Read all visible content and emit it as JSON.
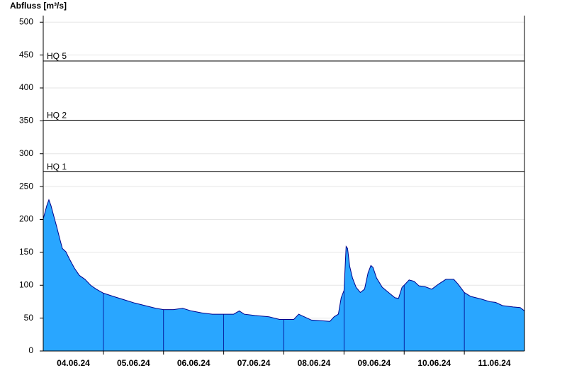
{
  "chart_data": {
    "type": "area",
    "title": "Abfluss [m³/s]",
    "x": [
      0,
      0.059,
      0.094,
      0.129,
      0.176,
      0.224,
      0.271,
      0.318,
      0.376,
      0.435,
      0.518,
      0.6,
      0.694,
      0.788,
      0.882,
      1,
      1.165,
      1.341,
      1.518,
      1.694,
      1.871,
      2,
      2.165,
      2.318,
      2.459,
      2.635,
      2.812,
      3,
      3.165,
      3.259,
      3.341,
      3.518,
      3.753,
      3.929,
      4,
      4.165,
      4.247,
      4.341,
      4.459,
      4.635,
      4.765,
      4.835,
      4.906,
      4.953,
      5,
      5.035,
      5.059,
      5.094,
      5.141,
      5.2,
      5.271,
      5.341,
      5.4,
      5.447,
      5.482,
      5.541,
      5.635,
      5.753,
      5.847,
      5.906,
      5.965,
      6,
      6.082,
      6.165,
      6.247,
      6.341,
      6.459,
      6.576,
      6.694,
      6.824,
      6.894,
      7,
      7.106,
      7.282,
      7.424,
      7.518,
      7.635,
      7.812,
      7.929,
      8
    ],
    "series": [
      {
        "color": "#29a6ff",
        "line_color": "#00008b",
        "values": [
          201,
          221,
          230,
          221,
          205,
          189,
          172,
          156,
          151,
          140,
          126,
          115,
          109,
          100,
          94,
          88,
          83,
          78,
          73,
          69,
          65,
          63,
          63,
          65,
          61,
          58,
          56,
          56,
          56,
          61,
          56,
          54,
          52,
          48,
          48,
          48,
          56,
          52,
          47,
          46,
          45,
          52,
          56,
          81,
          92,
          159,
          156,
          129,
          111,
          97,
          89,
          94,
          119,
          130,
          127,
          111,
          97,
          88,
          81,
          80,
          97,
          100,
          108,
          106,
          99,
          98,
          94,
          102,
          109,
          109,
          102,
          89,
          83,
          79,
          75,
          74,
          69,
          67,
          66,
          61
        ]
      }
    ],
    "xlim": [
      0,
      8
    ],
    "xticks": [
      {
        "value": 0.5,
        "label": "04.06.24"
      },
      {
        "value": 1.5,
        "label": "05.06.24"
      },
      {
        "value": 2.5,
        "label": "06.06.24"
      },
      {
        "value": 3.5,
        "label": "07.06.24"
      },
      {
        "value": 4.5,
        "label": "08.06.24"
      },
      {
        "value": 5.5,
        "label": "09.06.24"
      },
      {
        "value": 6.5,
        "label": "10.06.24"
      },
      {
        "value": 7.5,
        "label": "11.06.24"
      }
    ],
    "ylim": [
      0,
      510
    ],
    "yticks": [
      0,
      50,
      100,
      150,
      200,
      250,
      300,
      350,
      400,
      450,
      500
    ],
    "grid": true,
    "thresholds": [
      {
        "label": "HQ 1",
        "value": 273
      },
      {
        "label": "HQ 2",
        "value": 351
      },
      {
        "label": "HQ 5",
        "value": 441
      }
    ]
  }
}
